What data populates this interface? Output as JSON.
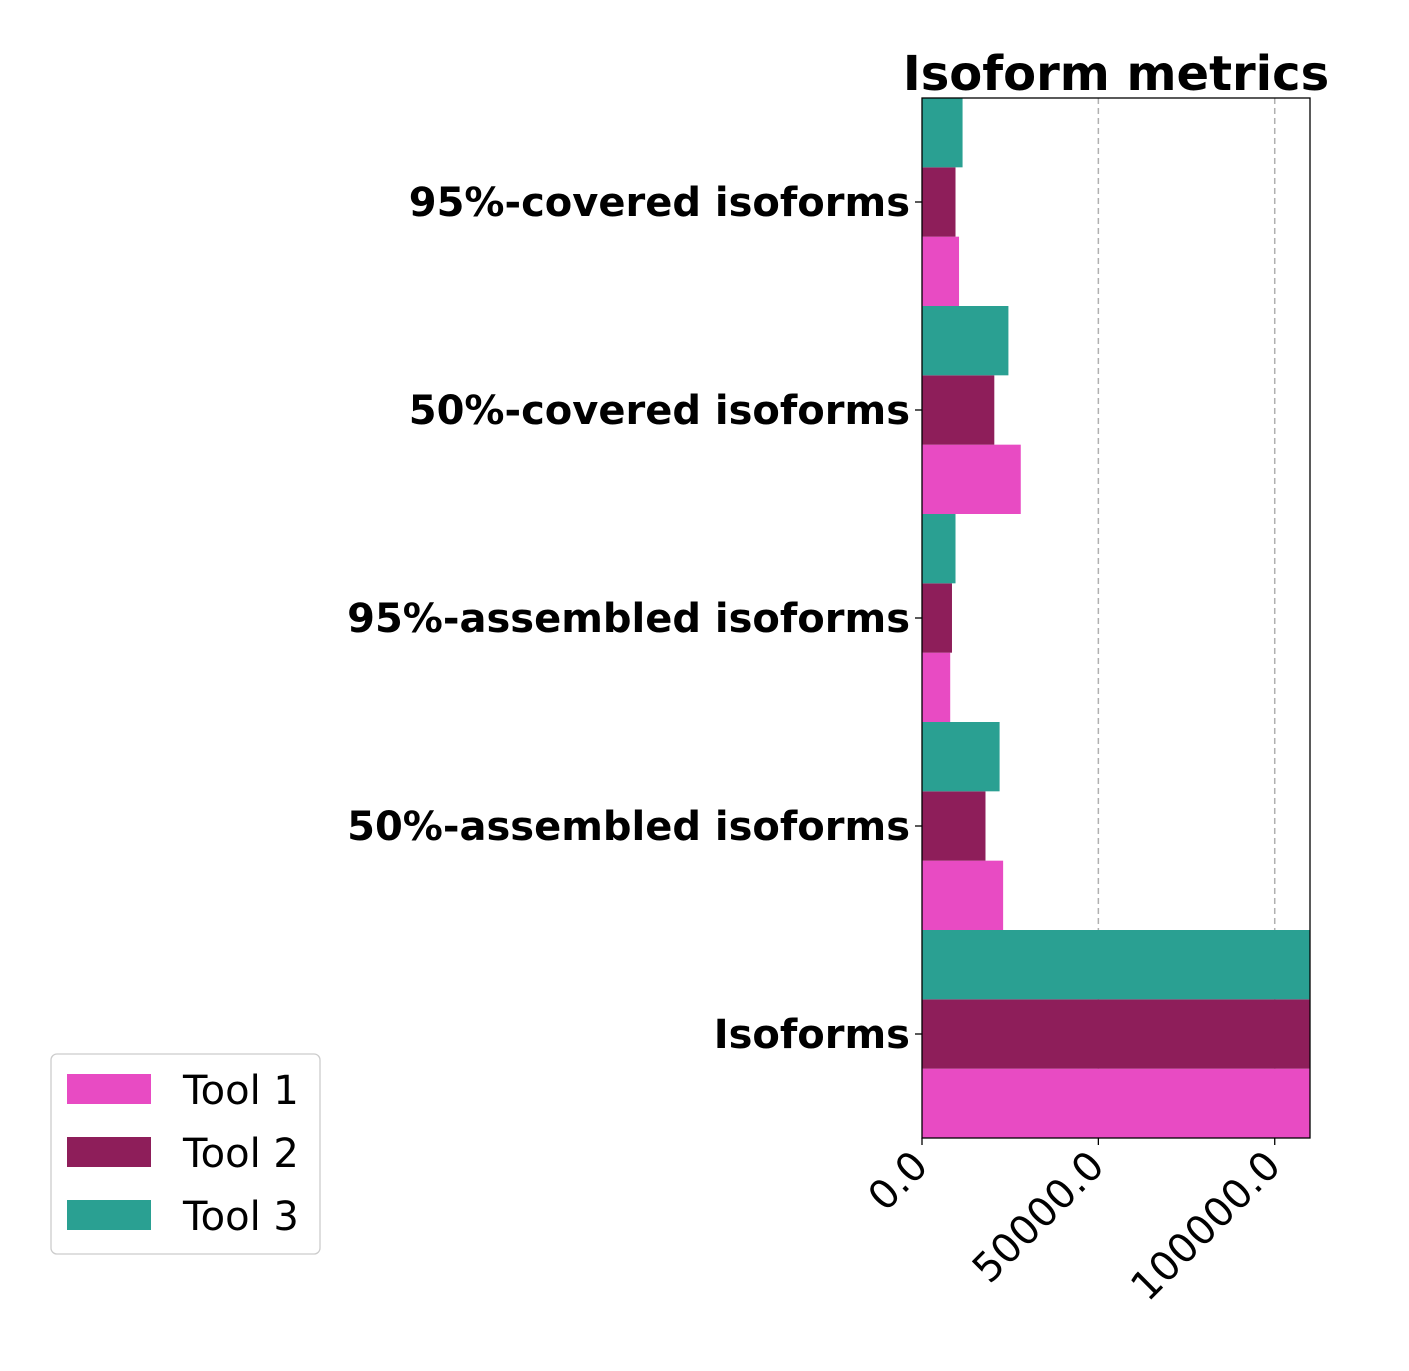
{
  "chart_data": {
    "type": "bar",
    "orientation": "horizontal",
    "title": "Isoform metrics",
    "xlabel": "",
    "ylabel": "",
    "categories": [
      "Isoforms",
      "50%-assembled isoforms",
      "95%-assembled isoforms",
      "50%-covered isoforms",
      "95%-covered isoforms"
    ],
    "series": [
      {
        "name": "Tool 1",
        "color": "#e84bc3",
        "values": [
          110000,
          23000,
          8000,
          28000,
          10500
        ]
      },
      {
        "name": "Tool 2",
        "color": "#8e1e5a",
        "values": [
          110000,
          18000,
          8500,
          20500,
          9500
        ]
      },
      {
        "name": "Tool 3",
        "color": "#2aa092",
        "values": [
          110000,
          22000,
          9500,
          24500,
          11500
        ]
      }
    ],
    "xlim": [
      0,
      110000
    ],
    "xticks": [
      0,
      50000,
      100000
    ],
    "xtick_labels": [
      "0.0",
      "50000.0",
      "100000.0"
    ],
    "xtick_rotation": 45,
    "grid": "x, dashed, gray",
    "legend_position": "lower-left"
  }
}
